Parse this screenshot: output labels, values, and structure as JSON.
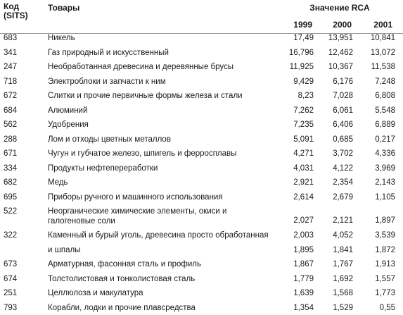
{
  "header": {
    "code_label": "Код\n(SITS)",
    "goods_label": "Товары",
    "rca_label": "Значение RCA",
    "years": [
      "1999",
      "2000",
      "2001"
    ]
  },
  "rows": [
    {
      "code": "683",
      "name": "Никель",
      "v1999": "17,49",
      "v2000": "13,951",
      "v2001": "10,841"
    },
    {
      "code": "341",
      "name": "Газ природный и искусственный",
      "v1999": "16,796",
      "v2000": "12,462",
      "v2001": "13,072"
    },
    {
      "code": "247",
      "name": "Необработанная древесина и деревянные брусы",
      "v1999": "11,925",
      "v2000": "10,367",
      "v2001": "11,538"
    },
    {
      "code": "718",
      "name": "Электроблоки и запчасти к ним",
      "v1999": "9,429",
      "v2000": "6,176",
      "v2001": "7,248"
    },
    {
      "code": "672",
      "name": "Слитки и прочие первичные формы железа и стали",
      "v1999": "8,23",
      "v2000": "7,028",
      "v2001": "6,808"
    },
    {
      "code": "684",
      "name": "Алюминий",
      "v1999": "7,262",
      "v2000": "6,061",
      "v2001": "5,548"
    },
    {
      "code": "562",
      "name": "Удобрения",
      "v1999": "7,235",
      "v2000": "6,406",
      "v2001": "6,889"
    },
    {
      "code": "288",
      "name": "Лом и отходы цветных металлов",
      "v1999": "5,091",
      "v2000": "0,685",
      "v2001": "0,217"
    },
    {
      "code": "671",
      "name": "Чугун и губчатое железо, шпигель и ферросплавы",
      "v1999": "4,271",
      "v2000": "3,702",
      "v2001": "4,336"
    },
    {
      "code": "334",
      "name": "Продукты нефтепереработки",
      "v1999": "4,031",
      "v2000": "4,122",
      "v2001": "3,969"
    },
    {
      "code": "682",
      "name": "Медь",
      "v1999": "2,921",
      "v2000": "2,354",
      "v2001": "2,143"
    },
    {
      "code": "695",
      "name": "Приборы ручного и машинного использования",
      "v1999": "2,614",
      "v2000": "2,679",
      "v2001": "1,105"
    },
    {
      "code": "522",
      "name": "Неорганические химические элементы, окиси и галогеновые соли",
      "v1999": "2,027",
      "v2000": "2,121",
      "v2001": "1,897",
      "tall": true
    },
    {
      "code": "322",
      "name": "Каменный и бурый уголь, древесина просто обработанная",
      "v1999": "2,003",
      "v2000": "4,052",
      "v2001": "3,539"
    },
    {
      "code": "",
      "name": "и шпалы",
      "v1999": "1,895",
      "v2000": "1,841",
      "v2001": "1,872"
    },
    {
      "code": "673",
      "name": "Арматурная, фасонная сталь и профиль",
      "v1999": "1,867",
      "v2000": "1,767",
      "v2001": "1,913"
    },
    {
      "code": "674",
      "name": "Толстолистовая и тонколистовая сталь",
      "v1999": "1,779",
      "v2000": "1,692",
      "v2001": "1,557"
    },
    {
      "code": "251",
      "name": "Целлюлоза и макулатура",
      "v1999": "1,639",
      "v2000": "1,568",
      "v2001": "1,773"
    },
    {
      "code": "793",
      "name": "Корабли, лодки и прочие плавсредства",
      "v1999": "1,354",
      "v2000": "1,529",
      "v2001": "0,55"
    }
  ]
}
